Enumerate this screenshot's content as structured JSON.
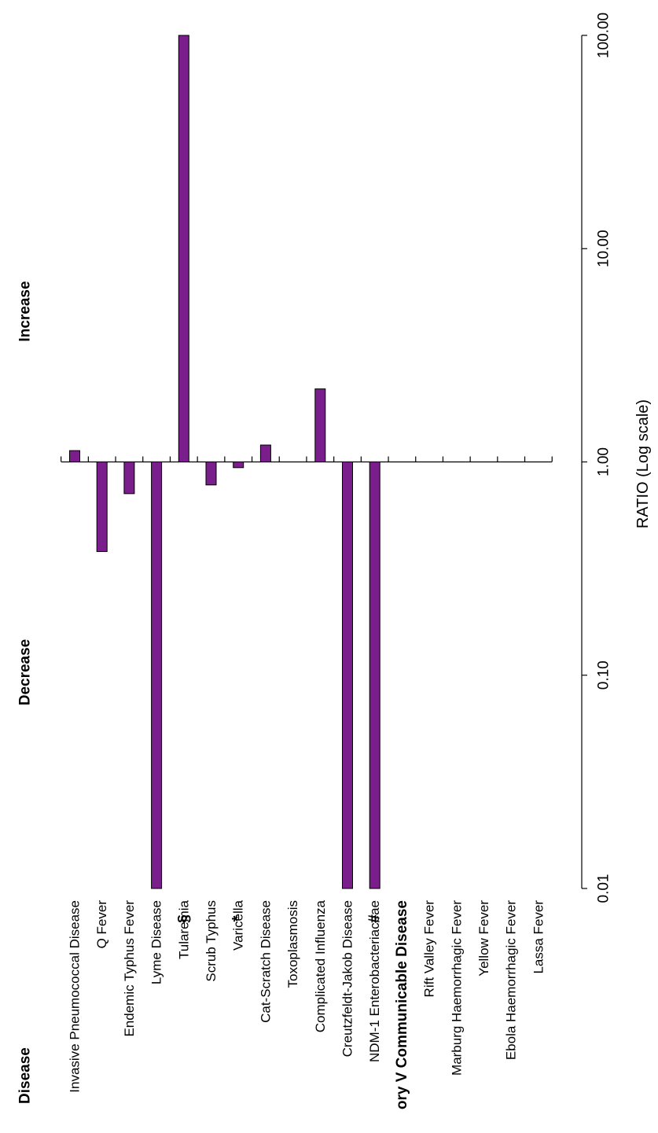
{
  "chart_data": {
    "type": "bar",
    "orientation": "horizontal (figure rotated 90 degrees)",
    "scale": "log",
    "xlabel": "RATIO (Log scale)",
    "ylabel": "Disease",
    "xlim": [
      0.01,
      100
    ],
    "tick_labels": [
      "0.01",
      "0.10",
      "1.00",
      "10.00",
      "100.00"
    ],
    "annotations": {
      "left": "Decrease",
      "right": "Increase"
    },
    "bar_color": "#7a1e8c",
    "categories": [
      "Invasive Pneumococcal Disease",
      "Q Fever",
      "Endemic Typhus Fever",
      "Lyme Disease",
      "Tularemia",
      "Scrub Typhus",
      "Varicella",
      "Cat-Scratch Disease",
      "Toxoplasmosis",
      "Complicated Influenza",
      "Creutzfeldt-Jakob Disease",
      "NDM-1 Enterobacteriaceae",
      "ory V Communicable Disease",
      "Rift Valley Fever",
      "Marburg Haemorrhagic Fever",
      "Yellow Fever",
      "Ebola Haemorrhagic Fever",
      "Lassa Fever"
    ],
    "values": [
      1.13,
      0.38,
      0.71,
      0.01,
      100,
      0.78,
      0.94,
      1.2,
      null,
      2.2,
      0.01,
      0.01,
      null,
      null,
      null,
      null,
      null,
      null
    ],
    "markers": [
      {
        "category": "Tularemia",
        "symbol": "§",
        "color": "#2255aa"
      },
      {
        "category": "Varicella",
        "symbol": "*",
        "color": "#a24fb0"
      },
      {
        "category": "NDM-1 Enterobacteriaceae",
        "symbol": "#",
        "color": "#2e8b2e"
      }
    ],
    "section_headers": [
      {
        "category": "ory V Communicable Disease",
        "color": "#e8262a"
      }
    ]
  }
}
